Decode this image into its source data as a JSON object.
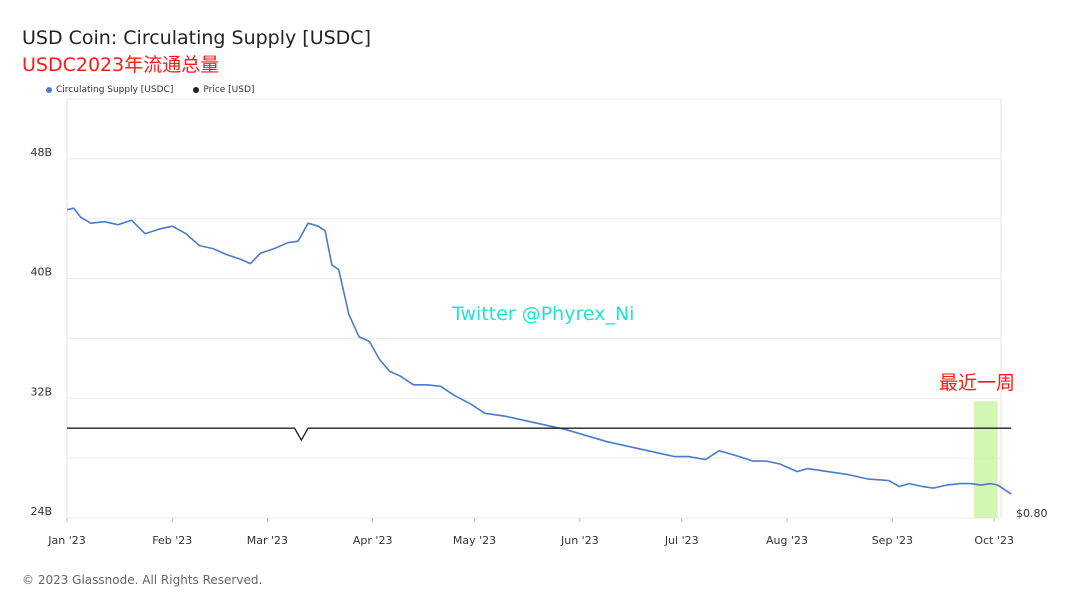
{
  "header": {
    "title": "USD Coin: Circulating Supply [USDC]",
    "subtitle": "USDC2023年流通总量"
  },
  "legend": [
    {
      "label": "Circulating Supply [USDC]",
      "color": "#4a7cc9"
    },
    {
      "label": "Price [USD]",
      "color": "#222222"
    }
  ],
  "watermark": "Twitter @Phyrex_Ni",
  "annotation": "最近一周",
  "footer": "© 2023 Glassnode. All Rights Reserved.",
  "chart_data": {
    "type": "line",
    "title": "USD Coin: Circulating Supply [USDC]",
    "x_tick_labels": [
      "Jan '23",
      "Feb '23",
      "Mar '23",
      "Apr '23",
      "May '23",
      "Jun '23",
      "Jul '23",
      "Aug '23",
      "Sep '23",
      "Oct '23"
    ],
    "y_tick_labels": [
      "48B",
      "40B",
      "32B",
      "24B"
    ],
    "y_ticks": [
      48,
      40,
      32,
      24
    ],
    "ylim": [
      24,
      52
    ],
    "right_axis_label": "$0.80",
    "x_range": [
      "2023-01-01",
      "2023-10-03"
    ],
    "highlight_range": [
      "2023-09-25",
      "2023-10-02"
    ],
    "highlight_color": "#ccf5a6",
    "series": [
      {
        "name": "Circulating Supply [USDC]",
        "color": "#4a7cc9",
        "unit": "B",
        "points": [
          [
            "2023-01-01",
            44.6
          ],
          [
            "2023-01-03",
            44.7
          ],
          [
            "2023-01-05",
            44.1
          ],
          [
            "2023-01-08",
            43.7
          ],
          [
            "2023-01-12",
            43.8
          ],
          [
            "2023-01-16",
            43.6
          ],
          [
            "2023-01-20",
            43.9
          ],
          [
            "2023-01-24",
            43.0
          ],
          [
            "2023-01-28",
            43.3
          ],
          [
            "2023-02-01",
            43.5
          ],
          [
            "2023-02-05",
            43.0
          ],
          [
            "2023-02-09",
            42.2
          ],
          [
            "2023-02-13",
            42.0
          ],
          [
            "2023-02-17",
            41.6
          ],
          [
            "2023-02-21",
            41.3
          ],
          [
            "2023-02-24",
            41.0
          ],
          [
            "2023-02-27",
            41.7
          ],
          [
            "2023-03-03",
            42.0
          ],
          [
            "2023-03-07",
            42.4
          ],
          [
            "2023-03-10",
            42.5
          ],
          [
            "2023-03-13",
            43.7
          ],
          [
            "2023-03-16",
            43.5
          ],
          [
            "2023-03-18",
            43.2
          ],
          [
            "2023-03-20",
            40.9
          ],
          [
            "2023-03-22",
            40.6
          ],
          [
            "2023-03-25",
            37.6
          ],
          [
            "2023-03-28",
            36.1
          ],
          [
            "2023-03-31",
            35.8
          ],
          [
            "2023-04-03",
            34.6
          ],
          [
            "2023-04-06",
            33.8
          ],
          [
            "2023-04-09",
            33.5
          ],
          [
            "2023-04-13",
            32.9
          ],
          [
            "2023-04-17",
            32.9
          ],
          [
            "2023-04-21",
            32.8
          ],
          [
            "2023-04-25",
            32.2
          ],
          [
            "2023-04-30",
            31.6
          ],
          [
            "2023-05-04",
            31.0
          ],
          [
            "2023-05-10",
            30.8
          ],
          [
            "2023-05-16",
            30.5
          ],
          [
            "2023-05-22",
            30.2
          ],
          [
            "2023-05-28",
            29.9
          ],
          [
            "2023-06-03",
            29.5
          ],
          [
            "2023-06-09",
            29.1
          ],
          [
            "2023-06-15",
            28.8
          ],
          [
            "2023-06-21",
            28.5
          ],
          [
            "2023-06-25",
            28.3
          ],
          [
            "2023-06-29",
            28.1
          ],
          [
            "2023-07-03",
            28.1
          ],
          [
            "2023-07-08",
            27.9
          ],
          [
            "2023-07-12",
            28.5
          ],
          [
            "2023-07-18",
            28.1
          ],
          [
            "2023-07-22",
            27.8
          ],
          [
            "2023-07-26",
            27.8
          ],
          [
            "2023-07-30",
            27.6
          ],
          [
            "2023-08-04",
            27.1
          ],
          [
            "2023-08-07",
            27.3
          ],
          [
            "2023-08-13",
            27.1
          ],
          [
            "2023-08-19",
            26.9
          ],
          [
            "2023-08-25",
            26.6
          ],
          [
            "2023-08-31",
            26.5
          ],
          [
            "2023-09-03",
            26.1
          ],
          [
            "2023-09-06",
            26.3
          ],
          [
            "2023-09-10",
            26.1
          ],
          [
            "2023-09-13",
            26.0
          ],
          [
            "2023-09-17",
            26.2
          ],
          [
            "2023-09-21",
            26.3
          ],
          [
            "2023-09-24",
            26.3
          ],
          [
            "2023-09-27",
            26.2
          ],
          [
            "2023-09-30",
            26.3
          ],
          [
            "2023-10-02",
            26.2
          ],
          [
            "2023-10-04",
            25.9
          ],
          [
            "2023-10-06",
            25.6
          ]
        ]
      },
      {
        "name": "Price [USD]",
        "color": "#222222",
        "unit": "USD",
        "note": "Flat near $1.00 with a depeg dip around 2023-03-11",
        "points": [
          [
            "2023-01-01",
            30.0
          ],
          [
            "2023-03-09",
            30.0
          ],
          [
            "2023-03-11",
            29.2
          ],
          [
            "2023-03-13",
            30.0
          ],
          [
            "2023-10-06",
            30.0
          ]
        ]
      }
    ]
  }
}
